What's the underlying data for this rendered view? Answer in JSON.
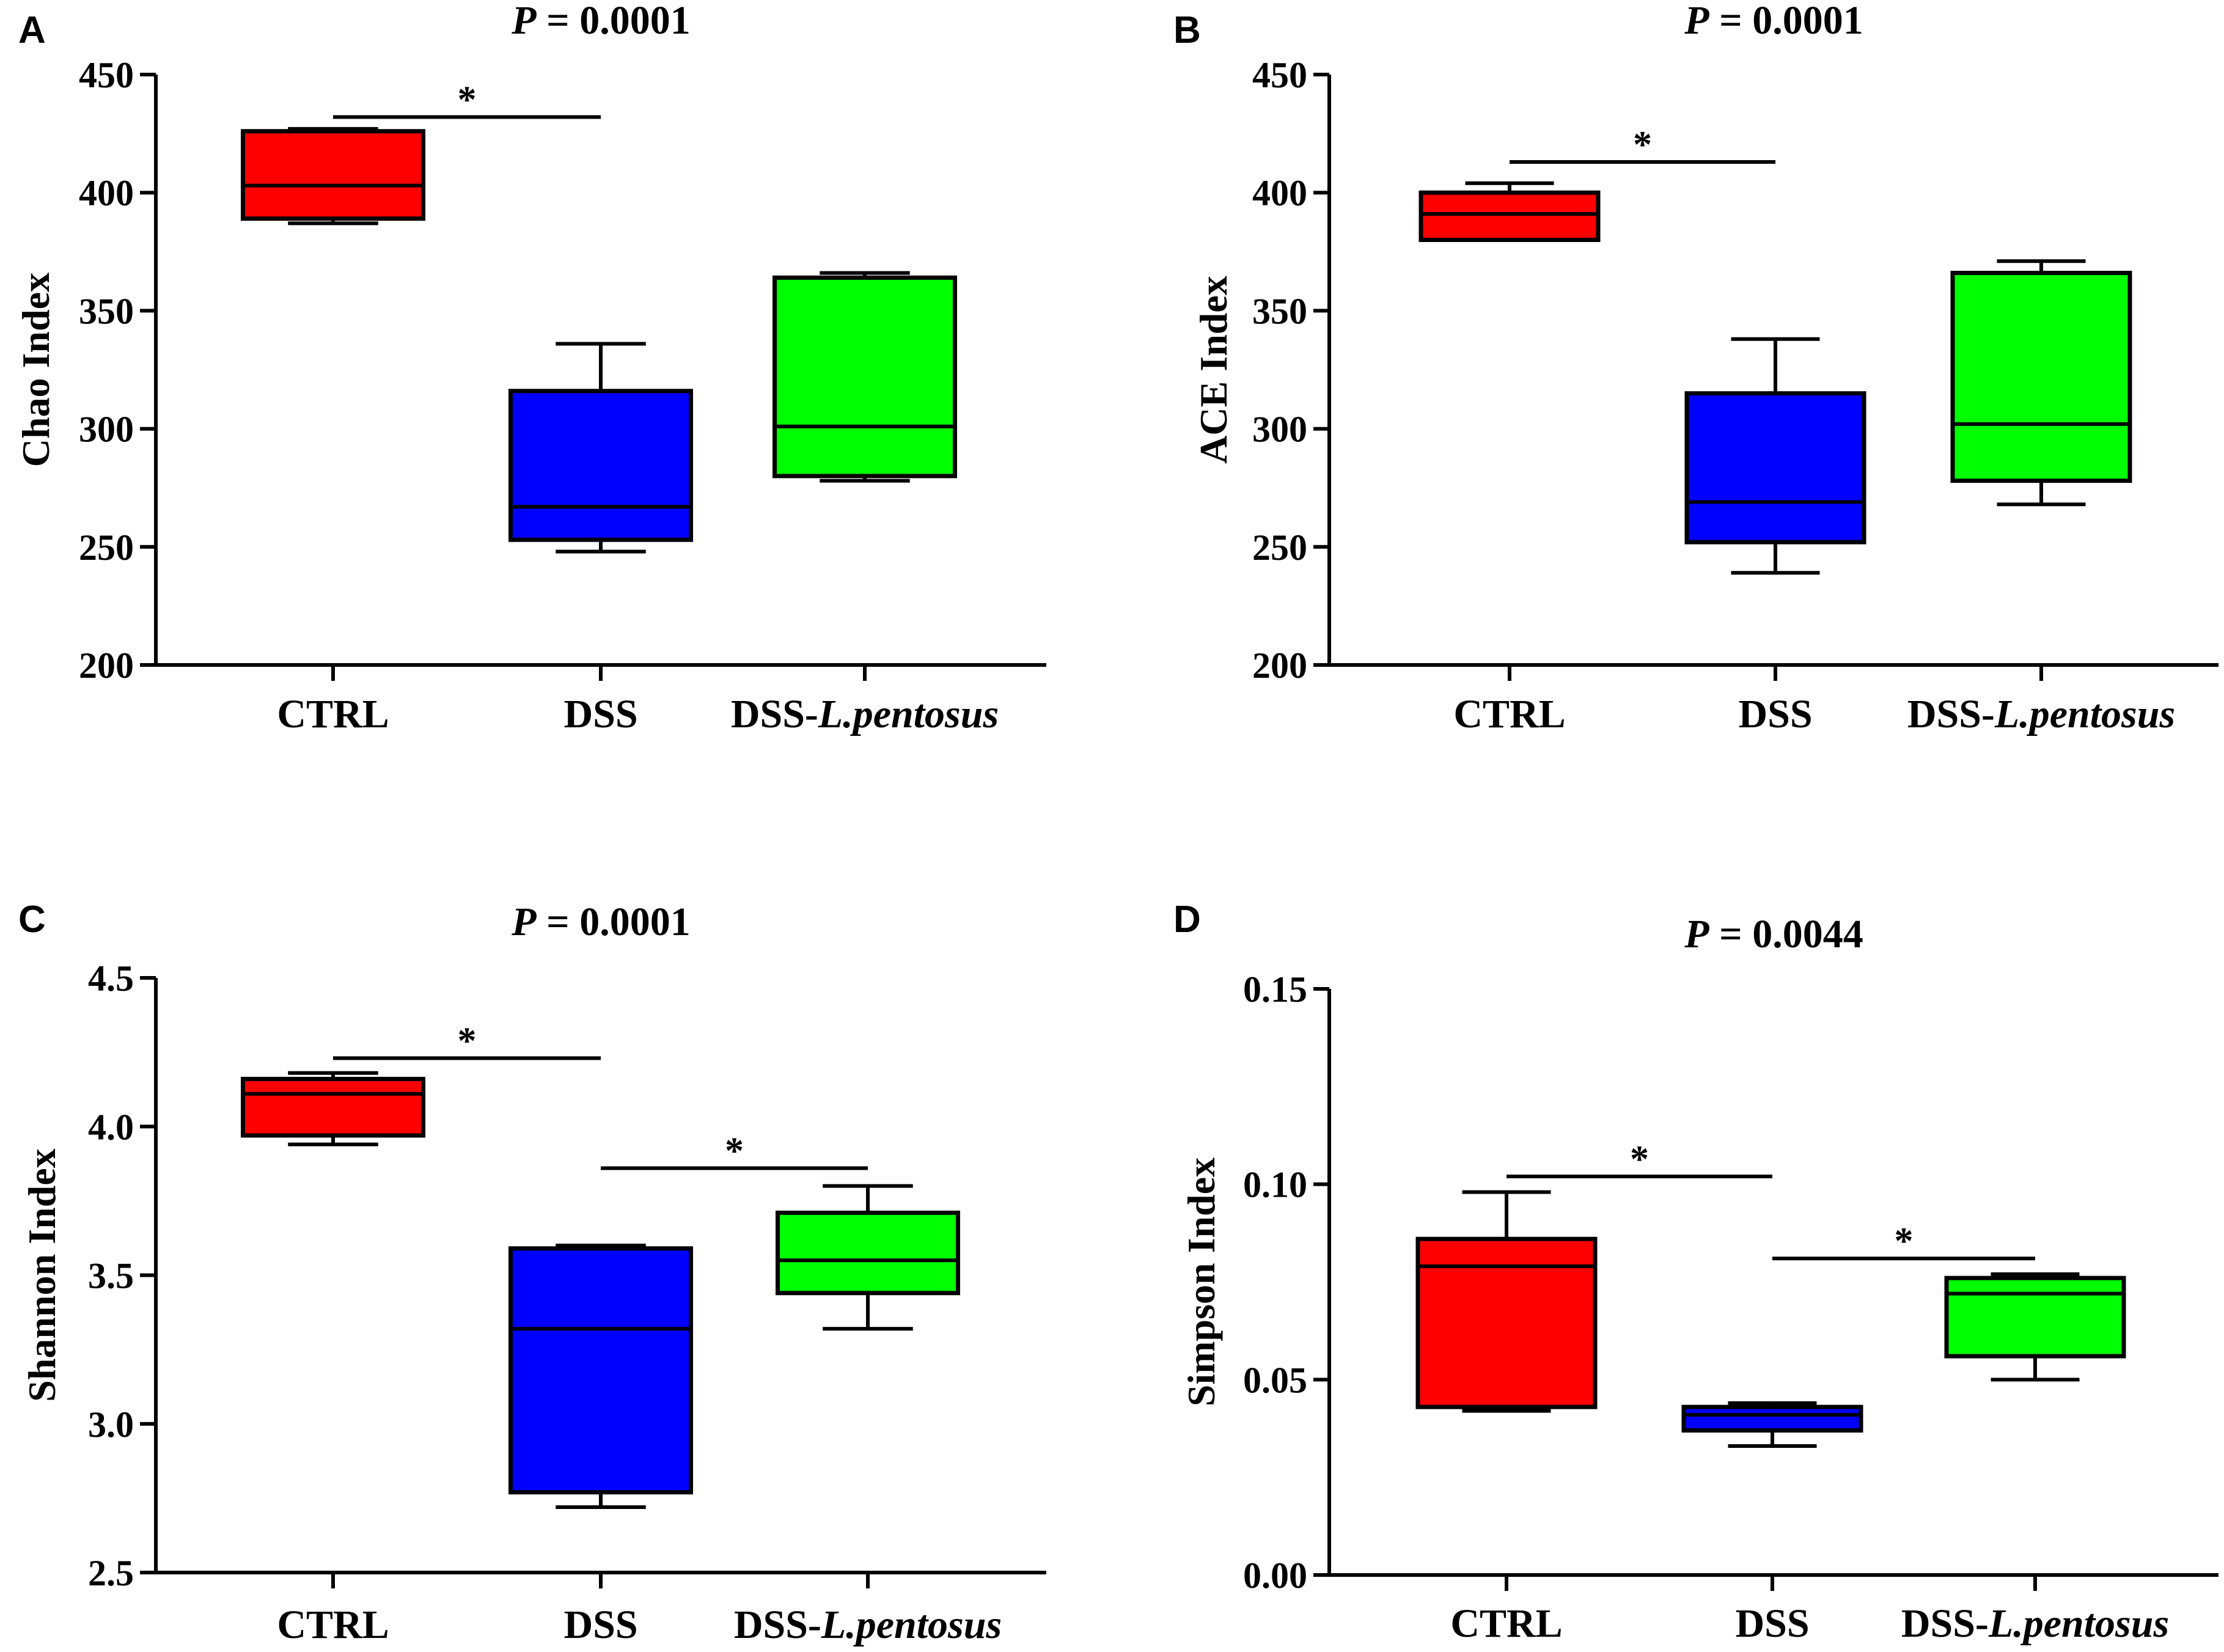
{
  "chart_data": [
    {
      "type": "box",
      "panel": "A",
      "title_italic": "P",
      "title_rest": " = 0.0001",
      "ylabel": "Chao Index",
      "ylim": [
        200,
        450
      ],
      "yticks": [
        "200",
        "250",
        "300",
        "350",
        "400",
        "450"
      ],
      "categories": [
        {
          "plain": "CTRL",
          "italic": ""
        },
        {
          "plain": "DSS",
          "italic": ""
        },
        {
          "plain": "DSS-",
          "italic": "L.pentosus"
        }
      ],
      "boxes": [
        {
          "min": 387,
          "q1": 389,
          "median": 403,
          "q3": 426,
          "max": 427,
          "color": "#ff0000"
        },
        {
          "min": 248,
          "q1": 253,
          "median": 267,
          "q3": 316,
          "max": 336,
          "color": "#0000ff"
        },
        {
          "min": 278,
          "q1": 280,
          "median": 301,
          "q3": 364,
          "max": 366,
          "color": "#00ff00"
        }
      ],
      "significance": [
        {
          "from": 0,
          "to": 1,
          "y": 432,
          "label": "*"
        }
      ]
    },
    {
      "type": "box",
      "panel": "B",
      "title_italic": "P",
      "title_rest": " = 0.0001",
      "ylabel": "ACE Index",
      "ylim": [
        200,
        450
      ],
      "yticks": [
        "200",
        "250",
        "300",
        "350",
        "400",
        "450"
      ],
      "categories": [
        {
          "plain": "CTRL",
          "italic": ""
        },
        {
          "plain": "DSS",
          "italic": ""
        },
        {
          "plain": "DSS-",
          "italic": "L.pentosus"
        }
      ],
      "boxes": [
        {
          "min": 380,
          "q1": 380,
          "median": 391,
          "q3": 400,
          "max": 404,
          "color": "#ff0000"
        },
        {
          "min": 239,
          "q1": 252,
          "median": 269,
          "q3": 315,
          "max": 338,
          "color": "#0000ff"
        },
        {
          "min": 268,
          "q1": 278,
          "median": 302,
          "q3": 366,
          "max": 371,
          "color": "#00ff00"
        }
      ],
      "significance": [
        {
          "from": 0,
          "to": 1,
          "y": 413,
          "label": "*"
        }
      ]
    },
    {
      "type": "box",
      "panel": "C",
      "title_italic": "P",
      "title_rest": " = 0.0001",
      "ylabel": "Shannon Index",
      "ylim": [
        2.5,
        4.5
      ],
      "yticks": [
        "2.5",
        "3.0",
        "3.5",
        "4.0",
        "4.5"
      ],
      "categories": [
        {
          "plain": "CTRL",
          "italic": ""
        },
        {
          "plain": "DSS",
          "italic": ""
        },
        {
          "plain": "DSS-",
          "italic": "L.pentosus"
        }
      ],
      "boxes": [
        {
          "min": 3.94,
          "q1": 3.97,
          "median": 4.11,
          "q3": 4.16,
          "max": 4.18,
          "color": "#ff0000"
        },
        {
          "min": 2.72,
          "q1": 2.77,
          "median": 3.32,
          "q3": 3.59,
          "max": 3.6,
          "color": "#0000ff"
        },
        {
          "min": 3.32,
          "q1": 3.44,
          "median": 3.55,
          "q3": 3.71,
          "max": 3.8,
          "color": "#00ff00"
        }
      ],
      "significance": [
        {
          "from": 0,
          "to": 1,
          "y": 4.23,
          "label": "*"
        },
        {
          "from": 1,
          "to": 2,
          "y": 3.86,
          "label": "*"
        }
      ]
    },
    {
      "type": "box",
      "panel": "D",
      "title_italic": "P",
      "title_rest": " = 0.0044",
      "ylabel": "Simpson Index",
      "ylim": [
        0,
        0.15
      ],
      "yticks": [
        "0.00",
        "0.05",
        "0.10",
        "0.15"
      ],
      "categories": [
        {
          "plain": "CTRL",
          "italic": ""
        },
        {
          "plain": "DSS",
          "italic": ""
        },
        {
          "plain": "DSS-",
          "italic": "L.pentosus"
        }
      ],
      "boxes": [
        {
          "min": 0.042,
          "q1": 0.043,
          "median": 0.079,
          "q3": 0.086,
          "max": 0.098,
          "color": "#ff0000"
        },
        {
          "min": 0.033,
          "q1": 0.037,
          "median": 0.041,
          "q3": 0.043,
          "max": 0.044,
          "color": "#0000ff"
        },
        {
          "min": 0.05,
          "q1": 0.056,
          "median": 0.072,
          "q3": 0.076,
          "max": 0.077,
          "color": "#00ff00"
        }
      ],
      "significance": [
        {
          "from": 0,
          "to": 1,
          "y": 0.102,
          "label": "*"
        },
        {
          "from": 1,
          "to": 2,
          "y": 0.081,
          "label": "*"
        }
      ]
    }
  ]
}
